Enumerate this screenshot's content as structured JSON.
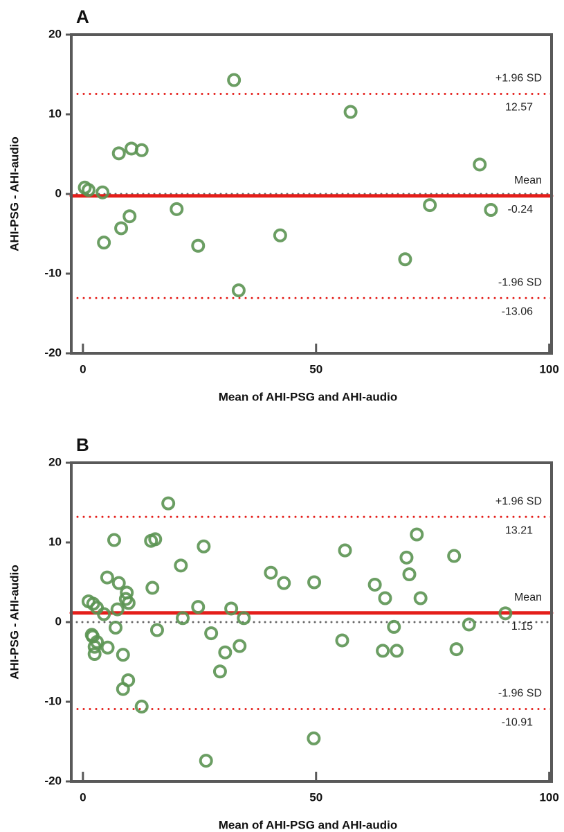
{
  "chart_data": [
    {
      "type": "scatter",
      "title": "A",
      "x_label": "Mean of AHI-PSG and AHI-audio",
      "y_label": "AHI-PSG - AHI-audio",
      "x": [
        0.4,
        1.2,
        4.2,
        4.5,
        7.7,
        8.2,
        10,
        10.4,
        12.6,
        20.1,
        24.7,
        32.4,
        33.4,
        42.3,
        57.4,
        69.1,
        74.4,
        85.1,
        87.5
      ],
      "y": [
        0.8,
        0.5,
        0.2,
        -6.1,
        5.1,
        -4.3,
        -2.8,
        5.7,
        5.5,
        -1.9,
        -6.5,
        14.3,
        -12.1,
        -5.2,
        10.3,
        -8.2,
        -1.4,
        3.7,
        -2
      ],
      "color": "#5b9452",
      "xlim": [
        -2.5,
        100.5
      ],
      "ylim": [
        -20,
        20
      ],
      "xticks": [
        0,
        50,
        100
      ],
      "yticks": [
        -20,
        -10,
        0,
        10,
        20
      ],
      "reference_line": 0,
      "mean_line": {
        "label": "Mean",
        "value": -0.24,
        "color": "#e41e1a"
      },
      "upper_loa": {
        "label": "+1.96 SD",
        "value": 12.57,
        "color": "#e41e1a"
      },
      "lower_loa": {
        "label": "-1.96 SD",
        "value": -13.06,
        "color": "#e41e1a"
      }
    },
    {
      "type": "scatter",
      "title": "B",
      "x_label": "Mean of AHI-PSG and AHI-audio",
      "y_label": "AHI-PSG - AHI-audio",
      "x": [
        1.2,
        2.2,
        3.0,
        1.9,
        2.1,
        2.5,
        2.5,
        3.0,
        4.5,
        5.2,
        5.3,
        6.7,
        7.0,
        7.4,
        7.7,
        8.6,
        8.6,
        9.4,
        9.2,
        9.8,
        9.7,
        12.6,
        14.6,
        15.5,
        14.9,
        15.9,
        18.3,
        21.0,
        21.4,
        24.7,
        25.9,
        27.5,
        29.4,
        30.5,
        31.8,
        33.6,
        34.5,
        40.3,
        43.1,
        49.5,
        49.6,
        26.4,
        55.6,
        56.2,
        62.6,
        64.8,
        64.3,
        66.7,
        67.3,
        69.4,
        70.0,
        71.6,
        72.4,
        79.6,
        80.1,
        82.8,
        90.6
      ],
      "y": [
        2.6,
        2.3,
        1.8,
        -1.6,
        -1.8,
        -3.1,
        -4.0,
        -2.5,
        1.0,
        5.6,
        -3.2,
        10.3,
        -0.7,
        1.6,
        4.9,
        -4.1,
        -8.4,
        3.7,
        2.9,
        2.4,
        -7.3,
        -10.6,
        10.2,
        10.4,
        4.3,
        -1.0,
        14.9,
        7.1,
        0.5,
        1.9,
        9.5,
        -1.4,
        -6.2,
        -3.8,
        1.7,
        -3.0,
        0.5,
        6.2,
        4.9,
        -14.6,
        5.0,
        -17.4,
        -2.3,
        9.0,
        4.7,
        3.0,
        -3.6,
        -0.6,
        -3.6,
        8.1,
        6.0,
        11.0,
        3.0,
        8.3,
        -3.4,
        -0.3,
        1.1
      ],
      "color": "#5b9452",
      "xlim": [
        -2.5,
        100.5
      ],
      "ylim": [
        -20,
        20
      ],
      "xticks": [
        0,
        50,
        100
      ],
      "yticks": [
        -20,
        -10,
        0,
        10,
        20
      ],
      "reference_line": 0,
      "mean_line": {
        "label": "Mean",
        "value": 1.15,
        "color": "#e41e1a"
      },
      "upper_loa": {
        "label": "+1.96 SD",
        "value": 13.21,
        "color": "#e41e1a"
      },
      "lower_loa": {
        "label": "-1.96 SD",
        "value": -10.91,
        "color": "#e41e1a"
      }
    }
  ]
}
